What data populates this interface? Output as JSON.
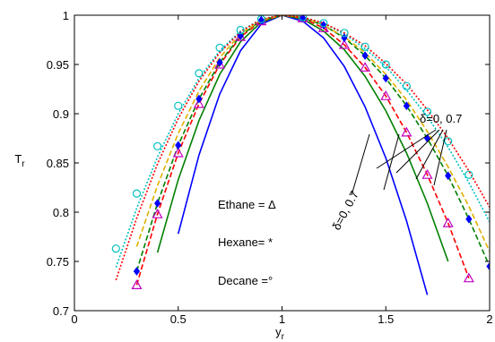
{
  "chart_data": {
    "type": "line",
    "xlabel": {
      "text": "y",
      "subscript": "r"
    },
    "ylabel": {
      "text": "T",
      "subscript": "r"
    },
    "xlim": [
      0,
      2
    ],
    "ylim": [
      0.7,
      1
    ],
    "xticks": [
      0,
      0.5,
      1,
      1.5,
      2
    ],
    "yticks": [
      0.7,
      0.75,
      0.8,
      0.85,
      0.9,
      0.95,
      1
    ],
    "annotations": [
      "δ=0, 0.7",
      "δ=0, 0.7",
      "Ethane = Δ",
      "Hexane= *",
      "Decane =°"
    ],
    "series": [
      {
        "color": "#0000ff",
        "dash": "solid",
        "x": [
          0.5,
          0.6,
          0.7,
          0.8,
          0.9,
          1,
          1.1,
          1.2,
          1.3,
          1.4,
          1.5,
          1.6,
          1.7
        ],
        "values": [
          0.778,
          0.858,
          0.92,
          0.964,
          0.991,
          1,
          0.994,
          0.977,
          0.948,
          0.907,
          0.855,
          0.791,
          0.716
        ]
      },
      {
        "color": "#008000",
        "dash": "solid",
        "x": [
          0.4,
          0.5,
          0.6,
          0.7,
          0.8,
          0.9,
          1,
          1.1,
          1.2,
          1.3,
          1.4,
          1.5,
          1.6,
          1.7,
          1.8
        ],
        "values": [
          0.759,
          0.833,
          0.893,
          0.94,
          0.973,
          0.993,
          1,
          0.996,
          0.984,
          0.965,
          0.938,
          0.903,
          0.86,
          0.809,
          0.75
        ]
      },
      {
        "color": "#ff0000",
        "dash": "dashed",
        "x": [
          0.3,
          0.4,
          0.5,
          0.6,
          0.7,
          0.8,
          0.9,
          1,
          1.1,
          1.2,
          1.3,
          1.4,
          1.5,
          1.6,
          1.7,
          1.8,
          1.9
        ],
        "values": [
          0.726,
          0.798,
          0.86,
          0.91,
          0.95,
          0.978,
          0.994,
          1,
          0.997,
          0.987,
          0.97,
          0.947,
          0.918,
          0.881,
          0.838,
          0.789,
          0.733
        ]
      },
      {
        "color": "#008000",
        "dash": "dashed",
        "x": [
          0.3,
          0.4,
          0.5,
          0.6,
          0.7,
          0.8,
          0.9,
          1,
          1.1,
          1.2,
          1.3,
          1.4,
          1.5,
          1.6,
          1.7,
          1.8,
          1.9,
          2
        ],
        "values": [
          0.74,
          0.809,
          0.868,
          0.915,
          0.952,
          0.979,
          0.995,
          1,
          0.997,
          0.99,
          0.977,
          0.959,
          0.936,
          0.908,
          0.875,
          0.837,
          0.793,
          0.745
        ]
      },
      {
        "color": "#e0b000",
        "dash": "dashed",
        "x": [
          0.3,
          0.4,
          0.5,
          0.6,
          0.7,
          0.8,
          0.9,
          1,
          1.1,
          1.2,
          1.3,
          1.4,
          1.5,
          1.6,
          1.7,
          1.8,
          1.9,
          2
        ],
        "values": [
          0.765,
          0.827,
          0.88,
          0.923,
          0.957,
          0.981,
          0.995,
          1,
          0.998,
          0.99,
          0.978,
          0.962,
          0.94,
          0.914,
          0.882,
          0.846,
          0.806,
          0.76
        ]
      },
      {
        "color": "#00c0c0",
        "dash": "dotted",
        "x": [
          0.2,
          0.3,
          0.4,
          0.5,
          0.6,
          0.7,
          0.8,
          0.9,
          1,
          1.1,
          1.2,
          1.3,
          1.4,
          1.5,
          1.6,
          1.7,
          1.8,
          1.9,
          2
        ],
        "values": [
          0.744,
          0.804,
          0.856,
          0.9,
          0.936,
          0.964,
          0.984,
          0.996,
          1,
          0.998,
          0.992,
          0.981,
          0.966,
          0.948,
          0.924,
          0.897,
          0.866,
          0.83,
          0.79
        ]
      },
      {
        "color": "#ff0000",
        "dash": "dotted",
        "x": [
          0.2,
          0.3,
          0.4,
          0.5,
          0.6,
          0.7,
          0.8,
          0.9,
          1,
          1.1,
          1.2,
          1.3,
          1.4,
          1.5,
          1.6,
          1.7,
          1.8,
          1.9,
          2
        ],
        "values": [
          0.731,
          0.794,
          0.849,
          0.895,
          0.933,
          0.962,
          0.983,
          0.996,
          1,
          0.998,
          0.992,
          0.982,
          0.969,
          0.951,
          0.93,
          0.904,
          0.875,
          0.842,
          0.805
        ]
      },
      {
        "color": "#c000c0",
        "marker": "triangle",
        "x": [
          0.3,
          0.4,
          0.5,
          0.6,
          0.7,
          0.8,
          0.9,
          1.1,
          1.2,
          1.3,
          1.4,
          1.5,
          1.6,
          1.7,
          1.8,
          1.9
        ],
        "values": [
          0.726,
          0.798,
          0.86,
          0.91,
          0.95,
          0.978,
          0.994,
          0.997,
          0.987,
          0.97,
          0.947,
          0.918,
          0.881,
          0.838,
          0.789,
          0.733
        ]
      },
      {
        "color": "#0000ff",
        "marker": "star",
        "x": [
          0.3,
          0.4,
          0.5,
          0.6,
          0.7,
          0.8,
          0.9,
          1.1,
          1.2,
          1.3,
          1.4,
          1.5,
          1.6,
          1.7,
          1.8,
          1.9,
          2
        ],
        "values": [
          0.74,
          0.809,
          0.868,
          0.915,
          0.952,
          0.979,
          0.995,
          0.997,
          0.99,
          0.977,
          0.959,
          0.936,
          0.908,
          0.875,
          0.837,
          0.793,
          0.745
        ]
      },
      {
        "color": "#00c0c0",
        "marker": "circle",
        "x": [
          0.2,
          0.3,
          0.4,
          0.5,
          0.6,
          0.7,
          0.8,
          0.9,
          1.1,
          1.2,
          1.3,
          1.4,
          1.5,
          1.6,
          1.7,
          1.8,
          1.9
        ],
        "values": [
          0.763,
          0.819,
          0.867,
          0.908,
          0.941,
          0.967,
          0.985,
          0.996,
          0.998,
          0.992,
          0.982,
          0.968,
          0.95,
          0.928,
          0.902,
          0.872,
          0.838
        ]
      }
    ]
  }
}
